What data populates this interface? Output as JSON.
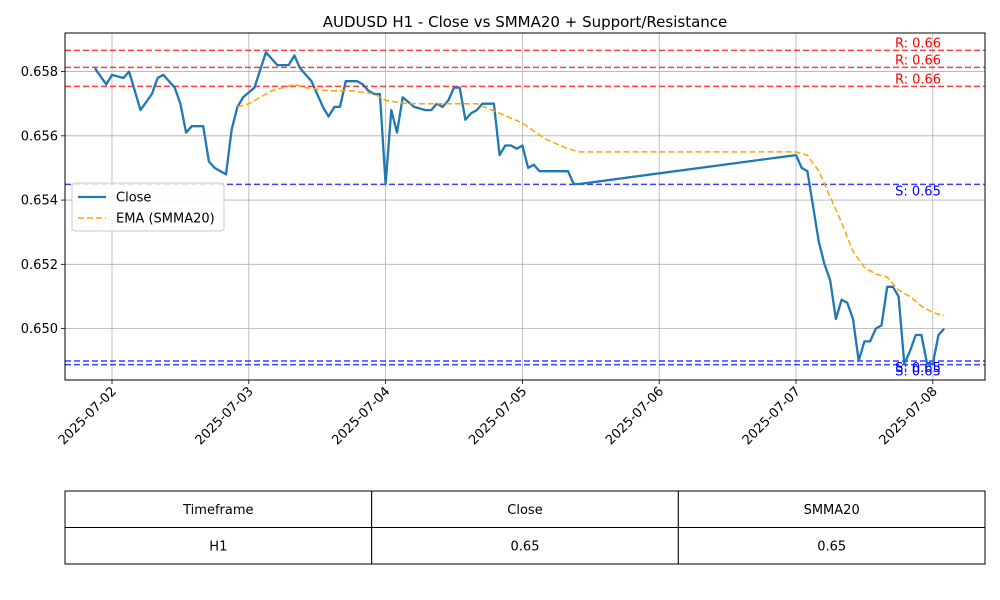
{
  "chart_data": {
    "type": "line",
    "title": "AUDUSD H1 - Close vs SMMA20 + Support/Resistance",
    "xlabel": "",
    "ylabel": "",
    "x_ticks": [
      "2025-07-02",
      "2025-07-03",
      "2025-07-04",
      "2025-07-05",
      "2025-07-06",
      "2025-07-07",
      "2025-07-08"
    ],
    "y_ticks": [
      "0.650",
      "0.652",
      "0.654",
      "0.656",
      "0.658"
    ],
    "ylim": [
      0.6484,
      0.6592
    ],
    "grid": true,
    "legend_position": "center-left",
    "series": [
      {
        "name": "Close",
        "color": "#1f77b4",
        "style": "solid",
        "points": [
          [
            "2025-07-01 21:00",
            0.6581
          ],
          [
            "2025-07-01 23:00",
            0.6576
          ],
          [
            "2025-07-02 00:00",
            0.6579
          ],
          [
            "2025-07-02 02:00",
            0.6578
          ],
          [
            "2025-07-02 03:00",
            0.658
          ],
          [
            "2025-07-02 05:00",
            0.6568
          ],
          [
            "2025-07-02 07:00",
            0.6573
          ],
          [
            "2025-07-02 08:00",
            0.6578
          ],
          [
            "2025-07-02 09:00",
            0.6579
          ],
          [
            "2025-07-02 11:00",
            0.6575
          ],
          [
            "2025-07-02 12:00",
            0.657
          ],
          [
            "2025-07-02 13:00",
            0.6561
          ],
          [
            "2025-07-02 14:00",
            0.6563
          ],
          [
            "2025-07-02 15:00",
            0.6563
          ],
          [
            "2025-07-02 16:00",
            0.6563
          ],
          [
            "2025-07-02 17:00",
            0.6552
          ],
          [
            "2025-07-02 18:00",
            0.655
          ],
          [
            "2025-07-02 20:00",
            0.6548
          ],
          [
            "2025-07-02 21:00",
            0.6562
          ],
          [
            "2025-07-02 22:00",
            0.6569
          ],
          [
            "2025-07-02 23:00",
            0.6572
          ],
          [
            "2025-07-03 01:00",
            0.6575
          ],
          [
            "2025-07-03 03:00",
            0.6586
          ],
          [
            "2025-07-03 05:00",
            0.6582
          ],
          [
            "2025-07-03 07:00",
            0.6582
          ],
          [
            "2025-07-03 08:00",
            0.6585
          ],
          [
            "2025-07-03 09:00",
            0.6581
          ],
          [
            "2025-07-03 10:00",
            0.6579
          ],
          [
            "2025-07-03 11:00",
            0.6577
          ],
          [
            "2025-07-03 13:00",
            0.6569
          ],
          [
            "2025-07-03 14:00",
            0.6566
          ],
          [
            "2025-07-03 15:00",
            0.6569
          ],
          [
            "2025-07-03 16:00",
            0.6569
          ],
          [
            "2025-07-03 17:00",
            0.6577
          ],
          [
            "2025-07-03 19:00",
            0.6577
          ],
          [
            "2025-07-03 20:00",
            0.6576
          ],
          [
            "2025-07-03 21:00",
            0.6574
          ],
          [
            "2025-07-03 22:00",
            0.6573
          ],
          [
            "2025-07-03 23:00",
            0.6573
          ],
          [
            "2025-07-04 00:00",
            0.6545
          ],
          [
            "2025-07-04 01:00",
            0.6568
          ],
          [
            "2025-07-04 02:00",
            0.6561
          ],
          [
            "2025-07-04 03:00",
            0.6572
          ],
          [
            "2025-07-04 05:00",
            0.6569
          ],
          [
            "2025-07-04 07:00",
            0.6568
          ],
          [
            "2025-07-04 08:00",
            0.6568
          ],
          [
            "2025-07-04 09:00",
            0.657
          ],
          [
            "2025-07-04 10:00",
            0.6569
          ],
          [
            "2025-07-04 11:00",
            0.6571
          ],
          [
            "2025-07-04 12:00",
            0.6575
          ],
          [
            "2025-07-04 13:00",
            0.6575
          ],
          [
            "2025-07-04 14:00",
            0.6565
          ],
          [
            "2025-07-04 15:00",
            0.6567
          ],
          [
            "2025-07-04 16:00",
            0.6568
          ],
          [
            "2025-07-04 17:00",
            0.657
          ],
          [
            "2025-07-04 18:00",
            0.657
          ],
          [
            "2025-07-04 19:00",
            0.657
          ],
          [
            "2025-07-04 20:00",
            0.6554
          ],
          [
            "2025-07-04 21:00",
            0.6557
          ],
          [
            "2025-07-04 22:00",
            0.6557
          ],
          [
            "2025-07-04 23:00",
            0.6556
          ],
          [
            "2025-07-05 00:00",
            0.6557
          ],
          [
            "2025-07-05 01:00",
            0.655
          ],
          [
            "2025-07-05 02:00",
            0.6551
          ],
          [
            "2025-07-05 03:00",
            0.6549
          ],
          [
            "2025-07-05 04:00",
            0.6549
          ],
          [
            "2025-07-05 05:00",
            0.6549
          ],
          [
            "2025-07-05 06:00",
            0.6549
          ],
          [
            "2025-07-05 07:00",
            0.6549
          ],
          [
            "2025-07-05 08:00",
            0.6549
          ],
          [
            "2025-07-05 09:00",
            0.6545
          ],
          [
            "2025-07-05 10:00",
            0.6545
          ],
          [
            "2025-07-07 00:00",
            0.6554
          ],
          [
            "2025-07-07 01:00",
            0.655
          ],
          [
            "2025-07-07 02:00",
            0.6549
          ],
          [
            "2025-07-07 03:00",
            0.6538
          ],
          [
            "2025-07-07 04:00",
            0.6527
          ],
          [
            "2025-07-07 05:00",
            0.652
          ],
          [
            "2025-07-07 06:00",
            0.6515
          ],
          [
            "2025-07-07 07:00",
            0.6503
          ],
          [
            "2025-07-07 08:00",
            0.6509
          ],
          [
            "2025-07-07 09:00",
            0.6508
          ],
          [
            "2025-07-07 10:00",
            0.6503
          ],
          [
            "2025-07-07 11:00",
            0.649
          ],
          [
            "2025-07-07 12:00",
            0.6496
          ],
          [
            "2025-07-07 13:00",
            0.6496
          ],
          [
            "2025-07-07 14:00",
            0.65
          ],
          [
            "2025-07-07 15:00",
            0.6501
          ],
          [
            "2025-07-07 16:00",
            0.6513
          ],
          [
            "2025-07-07 17:00",
            0.6513
          ],
          [
            "2025-07-07 18:00",
            0.651
          ],
          [
            "2025-07-07 19:00",
            0.6489
          ],
          [
            "2025-07-07 20:00",
            0.6493
          ],
          [
            "2025-07-07 21:00",
            0.6498
          ],
          [
            "2025-07-07 22:00",
            0.6498
          ],
          [
            "2025-07-07 23:00",
            0.6489
          ],
          [
            "2025-07-08 00:00",
            0.6489
          ],
          [
            "2025-07-08 01:00",
            0.6498
          ],
          [
            "2025-07-08 02:00",
            0.65
          ]
        ]
      },
      {
        "name": "EMA (SMMA20)",
        "color": "#ffa500",
        "style": "dashed",
        "points": [
          [
            "2025-07-02 22:00",
            0.6569
          ],
          [
            "2025-07-03 00:00",
            0.657
          ],
          [
            "2025-07-03 02:00",
            0.6572
          ],
          [
            "2025-07-03 04:00",
            0.6574
          ],
          [
            "2025-07-03 06:00",
            0.6575
          ],
          [
            "2025-07-03 08:00",
            0.6576
          ],
          [
            "2025-07-03 10:00",
            0.6575
          ],
          [
            "2025-07-03 14:00",
            0.6574
          ],
          [
            "2025-07-03 18:00",
            0.6574
          ],
          [
            "2025-07-03 22:00",
            0.6573
          ],
          [
            "2025-07-04 00:00",
            0.6571
          ],
          [
            "2025-07-04 04:00",
            0.657
          ],
          [
            "2025-07-04 08:00",
            0.657
          ],
          [
            "2025-07-04 12:00",
            0.657
          ],
          [
            "2025-07-04 16:00",
            0.657
          ],
          [
            "2025-07-04 20:00",
            0.6567
          ],
          [
            "2025-07-05 00:00",
            0.6564
          ],
          [
            "2025-07-05 04:00",
            0.6559
          ],
          [
            "2025-07-05 08:00",
            0.6556
          ],
          [
            "2025-07-05 10:00",
            0.6555
          ],
          [
            "2025-07-07 00:00",
            0.6555
          ],
          [
            "2025-07-07 02:00",
            0.6554
          ],
          [
            "2025-07-07 04:00",
            0.6549
          ],
          [
            "2025-07-07 06:00",
            0.6541
          ],
          [
            "2025-07-07 08:00",
            0.6533
          ],
          [
            "2025-07-07 10:00",
            0.6524
          ],
          [
            "2025-07-07 12:00",
            0.6519
          ],
          [
            "2025-07-07 14:00",
            0.6517
          ],
          [
            "2025-07-07 16:00",
            0.6516
          ],
          [
            "2025-07-07 18:00",
            0.6512
          ],
          [
            "2025-07-07 20:00",
            0.651
          ],
          [
            "2025-07-07 22:00",
            0.6507
          ],
          [
            "2025-07-08 00:00",
            0.6505
          ],
          [
            "2025-07-08 02:00",
            0.6504
          ]
        ]
      }
    ],
    "levels": [
      {
        "kind": "resistance",
        "value": 0.65866,
        "label": "R: 0.66",
        "color": "#ff0000"
      },
      {
        "kind": "resistance",
        "value": 0.65813,
        "label": "R: 0.66",
        "color": "#ff0000"
      },
      {
        "kind": "resistance",
        "value": 0.65754,
        "label": "R: 0.66",
        "color": "#ff0000"
      },
      {
        "kind": "support",
        "value": 0.65449,
        "label": "S: 0.65",
        "color": "#0000ff"
      },
      {
        "kind": "support",
        "value": 0.64899,
        "label": "S: 0.65",
        "color": "#0000ff"
      },
      {
        "kind": "support",
        "value": 0.64888,
        "label": "S: 0.65",
        "color": "#0000ff"
      }
    ],
    "table": {
      "headers": [
        "Timeframe",
        "Close",
        "SMMA20"
      ],
      "rows": [
        [
          "H1",
          "0.65",
          "0.65"
        ]
      ]
    }
  }
}
